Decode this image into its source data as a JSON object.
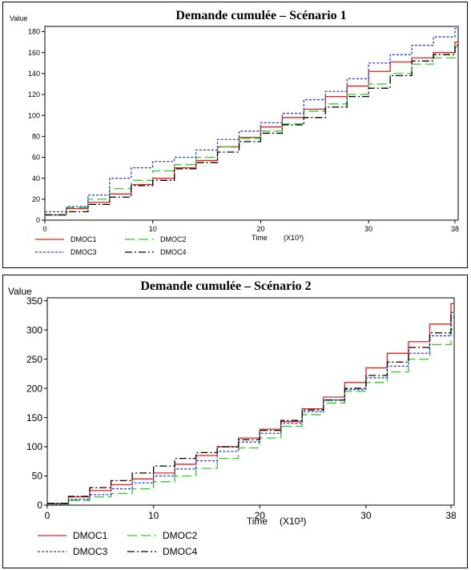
{
  "chart_data": [
    {
      "type": "line",
      "step": true,
      "title": "Demande cumulée – Scénario 1",
      "ylabel": "Value",
      "xlabel": "Time",
      "xunit": "(X10³)",
      "xlim": [
        0,
        38.3
      ],
      "ylim": [
        0,
        185
      ],
      "xticks": [
        0,
        10,
        20,
        30,
        38
      ],
      "yticks": [
        0,
        20,
        40,
        60,
        80,
        100,
        120,
        140,
        160,
        180
      ],
      "grid": false,
      "legend_position": "bottom-left",
      "x": [
        0,
        2,
        4,
        6,
        8,
        10,
        12,
        14,
        16,
        18,
        20,
        22,
        24,
        26,
        28,
        30,
        32,
        34,
        36,
        38
      ],
      "series": [
        {
          "name": "DMOC1",
          "color": "#e8201c",
          "dash": "solid",
          "values": [
            5,
            11,
            17,
            25,
            34,
            40,
            50,
            57,
            70,
            79,
            89,
            98,
            106,
            118,
            128,
            142,
            151,
            155,
            160,
            170
          ]
        },
        {
          "name": "DMOC2",
          "color": "#2bd02b",
          "dash": "long-dash",
          "values": [
            5,
            12,
            20,
            30,
            38,
            47,
            53,
            60,
            70,
            78,
            85,
            92,
            104,
            111,
            120,
            130,
            140,
            149,
            155,
            165
          ]
        },
        {
          "name": "DMOC3",
          "color": "#2f3fd1",
          "dash": "dotted",
          "values": [
            8,
            13,
            24,
            40,
            50,
            56,
            60,
            67,
            77,
            85,
            93,
            102,
            115,
            123,
            135,
            150,
            158,
            167,
            175,
            183
          ]
        },
        {
          "name": "DMOC4",
          "color": "#000000",
          "dash": "dash-dot",
          "values": [
            5,
            8,
            15,
            22,
            33,
            38,
            49,
            55,
            65,
            75,
            83,
            91,
            98,
            108,
            118,
            126,
            138,
            152,
            158,
            167
          ]
        }
      ]
    },
    {
      "type": "line",
      "step": true,
      "title": "Demande cumulée – Scénario 2",
      "ylabel": "Value",
      "xlabel": "Time",
      "xunit": "(X10³)",
      "xlim": [
        0,
        38.3
      ],
      "ylim": [
        0,
        355
      ],
      "xticks": [
        0,
        10,
        20,
        30,
        38
      ],
      "yticks": [
        0,
        50,
        100,
        150,
        200,
        250,
        300,
        350
      ],
      "grid": false,
      "legend_position": "bottom-left",
      "x": [
        0,
        2,
        4,
        6,
        8,
        10,
        12,
        14,
        16,
        18,
        20,
        22,
        24,
        26,
        28,
        30,
        32,
        34,
        36,
        38
      ],
      "series": [
        {
          "name": "DMOC1",
          "color": "#e8201c",
          "dash": "solid",
          "values": [
            3,
            14,
            25,
            35,
            45,
            55,
            70,
            85,
            100,
            115,
            130,
            143,
            165,
            185,
            210,
            235,
            260,
            280,
            310,
            345
          ]
        },
        {
          "name": "DMOC2",
          "color": "#2bd02b",
          "dash": "long-dash",
          "values": [
            1,
            8,
            14,
            20,
            28,
            40,
            50,
            63,
            80,
            98,
            115,
            135,
            155,
            175,
            195,
            210,
            228,
            250,
            275,
            302
          ]
        },
        {
          "name": "DMOC3",
          "color": "#2f3fd1",
          "dash": "dotted",
          "values": [
            2,
            10,
            18,
            28,
            38,
            50,
            62,
            76,
            92,
            108,
            123,
            140,
            160,
            180,
            198,
            218,
            238,
            260,
            290,
            322
          ]
        },
        {
          "name": "DMOC4",
          "color": "#000000",
          "dash": "dash-dot",
          "values": [
            3,
            15,
            30,
            42,
            55,
            67,
            80,
            90,
            100,
            112,
            128,
            145,
            163,
            180,
            200,
            222,
            245,
            270,
            295,
            330
          ]
        }
      ]
    }
  ]
}
